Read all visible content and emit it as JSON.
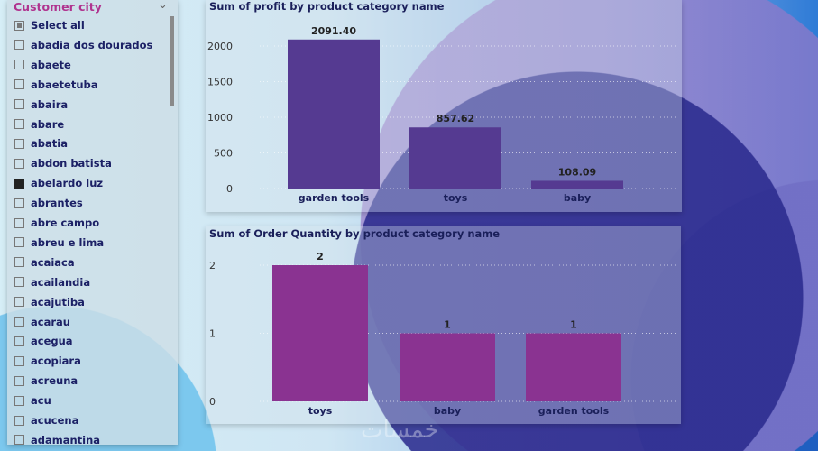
{
  "slicer": {
    "title": "Customer city",
    "items": [
      {
        "label": "Select all",
        "state": "partial"
      },
      {
        "label": "abadia dos dourados",
        "state": "off"
      },
      {
        "label": "abaete",
        "state": "off"
      },
      {
        "label": "abaetetuba",
        "state": "off"
      },
      {
        "label": "abaira",
        "state": "off"
      },
      {
        "label": "abare",
        "state": "off"
      },
      {
        "label": "abatia",
        "state": "off"
      },
      {
        "label": "abdon batista",
        "state": "off"
      },
      {
        "label": "abelardo luz",
        "state": "on"
      },
      {
        "label": "abrantes",
        "state": "off"
      },
      {
        "label": "abre campo",
        "state": "off"
      },
      {
        "label": "abreu e lima",
        "state": "off"
      },
      {
        "label": "acaiaca",
        "state": "off"
      },
      {
        "label": "acailandia",
        "state": "off"
      },
      {
        "label": "acajutiba",
        "state": "off"
      },
      {
        "label": "acarau",
        "state": "off"
      },
      {
        "label": "acegua",
        "state": "off"
      },
      {
        "label": "acopiara",
        "state": "off"
      },
      {
        "label": "acreuna",
        "state": "off"
      },
      {
        "label": "acu",
        "state": "off"
      },
      {
        "label": "acucena",
        "state": "off"
      },
      {
        "label": "adamantina",
        "state": "off"
      }
    ]
  },
  "watermark": "خمسات",
  "chart_data": [
    {
      "type": "bar",
      "title": "Sum of profit by product category name",
      "categories": [
        "garden tools",
        "toys",
        "baby"
      ],
      "values": [
        2091.4,
        857.62,
        108.09
      ],
      "data_labels": [
        "2091.40",
        "857.62",
        "108.09"
      ],
      "yticks": [
        "0",
        "500",
        "1000",
        "1500",
        "2000"
      ],
      "ylim": [
        0,
        2000
      ],
      "grid": true,
      "color": "#553a91"
    },
    {
      "type": "bar",
      "title": "Sum of Order Quantity by product category name",
      "categories": [
        "toys",
        "baby",
        "garden tools"
      ],
      "values": [
        2,
        1,
        1
      ],
      "data_labels": [
        "2",
        "1",
        "1"
      ],
      "yticks": [
        "0",
        "1",
        "2"
      ],
      "ylim": [
        0,
        2
      ],
      "grid": true,
      "color": "#8a3391"
    }
  ]
}
